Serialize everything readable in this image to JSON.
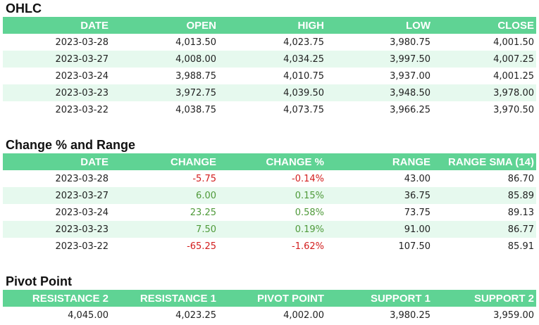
{
  "ohlc": {
    "title": "OHLC",
    "headers": [
      "DATE",
      "OPEN",
      "HIGH",
      "LOW",
      "CLOSE"
    ],
    "rows": [
      [
        "2023-03-28",
        "4,013.50",
        "4,023.75",
        "3,980.75",
        "4,001.50"
      ],
      [
        "2023-03-27",
        "4,008.00",
        "4,034.25",
        "3,997.50",
        "4,007.25"
      ],
      [
        "2023-03-24",
        "3,988.75",
        "4,010.75",
        "3,937.00",
        "4,001.25"
      ],
      [
        "2023-03-23",
        "3,972.75",
        "4,039.50",
        "3,948.50",
        "3,978.00"
      ],
      [
        "2023-03-22",
        "4,038.75",
        "4,073.75",
        "3,966.25",
        "3,970.50"
      ]
    ]
  },
  "change": {
    "title": "Change % and Range",
    "headers": [
      "DATE",
      "CHANGE",
      "CHANGE %",
      "RANGE",
      "RANGE SMA (14)"
    ],
    "rows": [
      [
        "2023-03-28",
        "-5.75",
        "-0.14%",
        "43.00",
        "86.70"
      ],
      [
        "2023-03-27",
        "6.00",
        "0.15%",
        "36.75",
        "85.89"
      ],
      [
        "2023-03-24",
        "23.25",
        "0.58%",
        "73.75",
        "89.13"
      ],
      [
        "2023-03-23",
        "7.50",
        "0.19%",
        "91.00",
        "86.77"
      ],
      [
        "2023-03-22",
        "-65.25",
        "-1.62%",
        "107.50",
        "85.91"
      ]
    ]
  },
  "pivot": {
    "title": "Pivot Point",
    "headers": [
      "RESISTANCE 2",
      "RESISTANCE 1",
      "PIVOT POINT",
      "SUPPORT 1",
      "SUPPORT 2"
    ],
    "values": [
      "4,045.00",
      "4,023.25",
      "4,002.00",
      "3,980.25",
      "3,959.00"
    ]
  },
  "colors": {
    "header_bg": "#5fd394",
    "alt_row_bg": "#e6f9ee",
    "negative": "#d21d1d",
    "positive": "#4f9a3a"
  }
}
